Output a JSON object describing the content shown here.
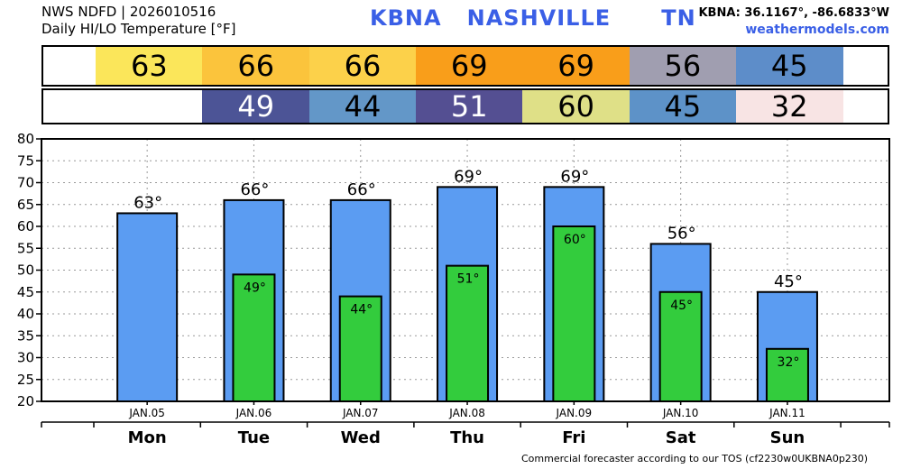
{
  "header": {
    "line1": "NWS NDFD | 2026010516",
    "line2": "Daily HI/LO Temperature [°F]",
    "station": "KBNA",
    "city": "NASHVILLE",
    "state": "TN",
    "coords": "KBNA: 36.1167°, -86.6833°W",
    "site": "weathermodels.com"
  },
  "footer": "Commercial forecaster according to our TOS (cf2230w0UKBNA0p230)",
  "colors": {
    "hi_bar": "#5b9cf2",
    "lo_bar": "#33cc3d",
    "grid": "#999999"
  },
  "high_band": [
    {
      "value": "63",
      "color": "#fbe65a",
      "text_color": "#000000"
    },
    {
      "value": "66",
      "color": "#fbc43c",
      "text_color": "#000000"
    },
    {
      "value": "66",
      "color": "#fcd14a",
      "text_color": "#000000"
    },
    {
      "value": "69",
      "color": "#f99e1a",
      "text_color": "#000000"
    },
    {
      "value": "69",
      "color": "#f99e1a",
      "text_color": "#000000"
    },
    {
      "value": "56",
      "color": "#a09eb0",
      "text_color": "#000000"
    },
    {
      "value": "45",
      "color": "#5d8dc9",
      "text_color": "#000000"
    }
  ],
  "low_band": [
    {
      "value": "49",
      "color": "#4c5496",
      "text_color": "#ffffff"
    },
    {
      "value": "44",
      "color": "#6397c8",
      "text_color": "#000000"
    },
    {
      "value": "51",
      "color": "#544f92",
      "text_color": "#ffffff"
    },
    {
      "value": "60",
      "color": "#dfe087",
      "text_color": "#000000"
    },
    {
      "value": "45",
      "color": "#5d92c8",
      "text_color": "#000000"
    },
    {
      "value": "32",
      "color": "#f8e4e4",
      "text_color": "#000000"
    }
  ],
  "chart_data": {
    "type": "bar",
    "categories": [
      "Mon",
      "Tue",
      "Wed",
      "Thu",
      "Fri",
      "Sat",
      "Sun"
    ],
    "dates": [
      "JAN.05",
      "JAN.06",
      "JAN.07",
      "JAN.08",
      "JAN.09",
      "JAN.10",
      "JAN.11"
    ],
    "series": [
      {
        "values": [
          63,
          66,
          66,
          69,
          69,
          56,
          45
        ],
        "labels": [
          "63°",
          "66°",
          "66°",
          "69°",
          "69°",
          "56°",
          "45°"
        ]
      },
      {
        "values": [
          null,
          49,
          44,
          51,
          60,
          45,
          32
        ],
        "labels": [
          "",
          "49°",
          "44°",
          "51°",
          "60°",
          "45°",
          "32°"
        ]
      }
    ],
    "ylim": [
      20,
      80
    ],
    "yticks": [
      "20",
      "25",
      "30",
      "35",
      "40",
      "45",
      "50",
      "55",
      "60",
      "65",
      "70",
      "75",
      "80"
    ],
    "grid": true
  }
}
